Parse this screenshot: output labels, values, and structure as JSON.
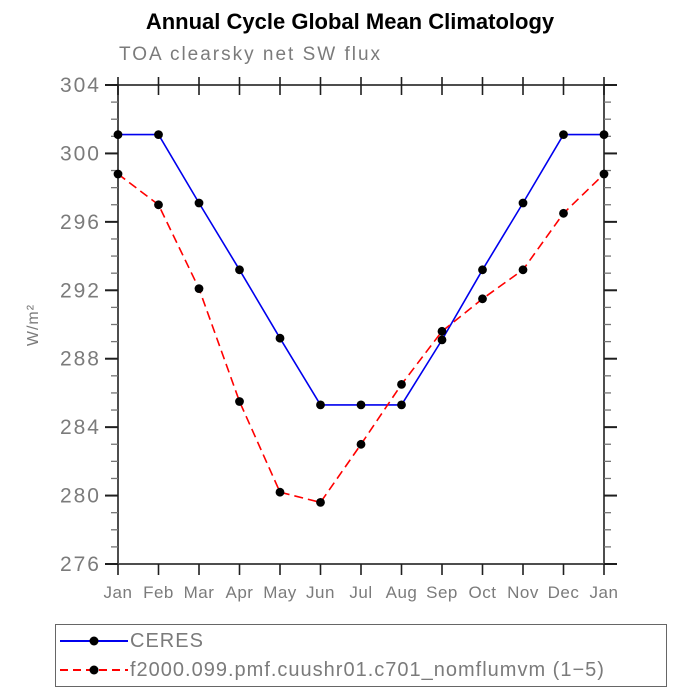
{
  "chart_data": {
    "type": "line",
    "title": "Annual Cycle Global Mean Climatology",
    "subtitle": "TOA clearsky net SW flux",
    "ylabel": "W/m²",
    "x_tick_labels": [
      "Jan",
      "Feb",
      "Mar",
      "Apr",
      "May",
      "Jun",
      "Jul",
      "Aug",
      "Sep",
      "Oct",
      "Nov",
      "Dec",
      "Jan"
    ],
    "y_major_ticks": [
      276,
      280,
      284,
      288,
      292,
      296,
      300,
      304
    ],
    "y_minor_step": 1,
    "ylim": [
      276,
      304
    ],
    "grid": false,
    "legend_position": "bottom",
    "series": [
      {
        "name": "CERES",
        "color": "#0000EE",
        "style": "solid",
        "marker": "circle",
        "marker_color": "#000000",
        "values": [
          301.1,
          301.1,
          297.1,
          293.2,
          289.2,
          285.3,
          285.3,
          285.3,
          289.1,
          293.2,
          297.1,
          301.1,
          301.1
        ]
      },
      {
        "name": "f2000.099.pmf.cuushr01.c701_nomflumvm (1−5)",
        "color": "#FF0000",
        "style": "dashed",
        "marker": "circle",
        "marker_color": "#000000",
        "values": [
          298.8,
          297.0,
          292.1,
          285.5,
          280.2,
          279.6,
          283.0,
          286.5,
          289.6,
          291.5,
          293.2,
          296.5,
          298.8
        ]
      }
    ]
  },
  "colors": {
    "frame": "#4d4d4d",
    "major_tick": "#1f1f1f",
    "minor_tick": "#757575",
    "tick_label": "#7b7b7b",
    "title": "#000000"
  }
}
